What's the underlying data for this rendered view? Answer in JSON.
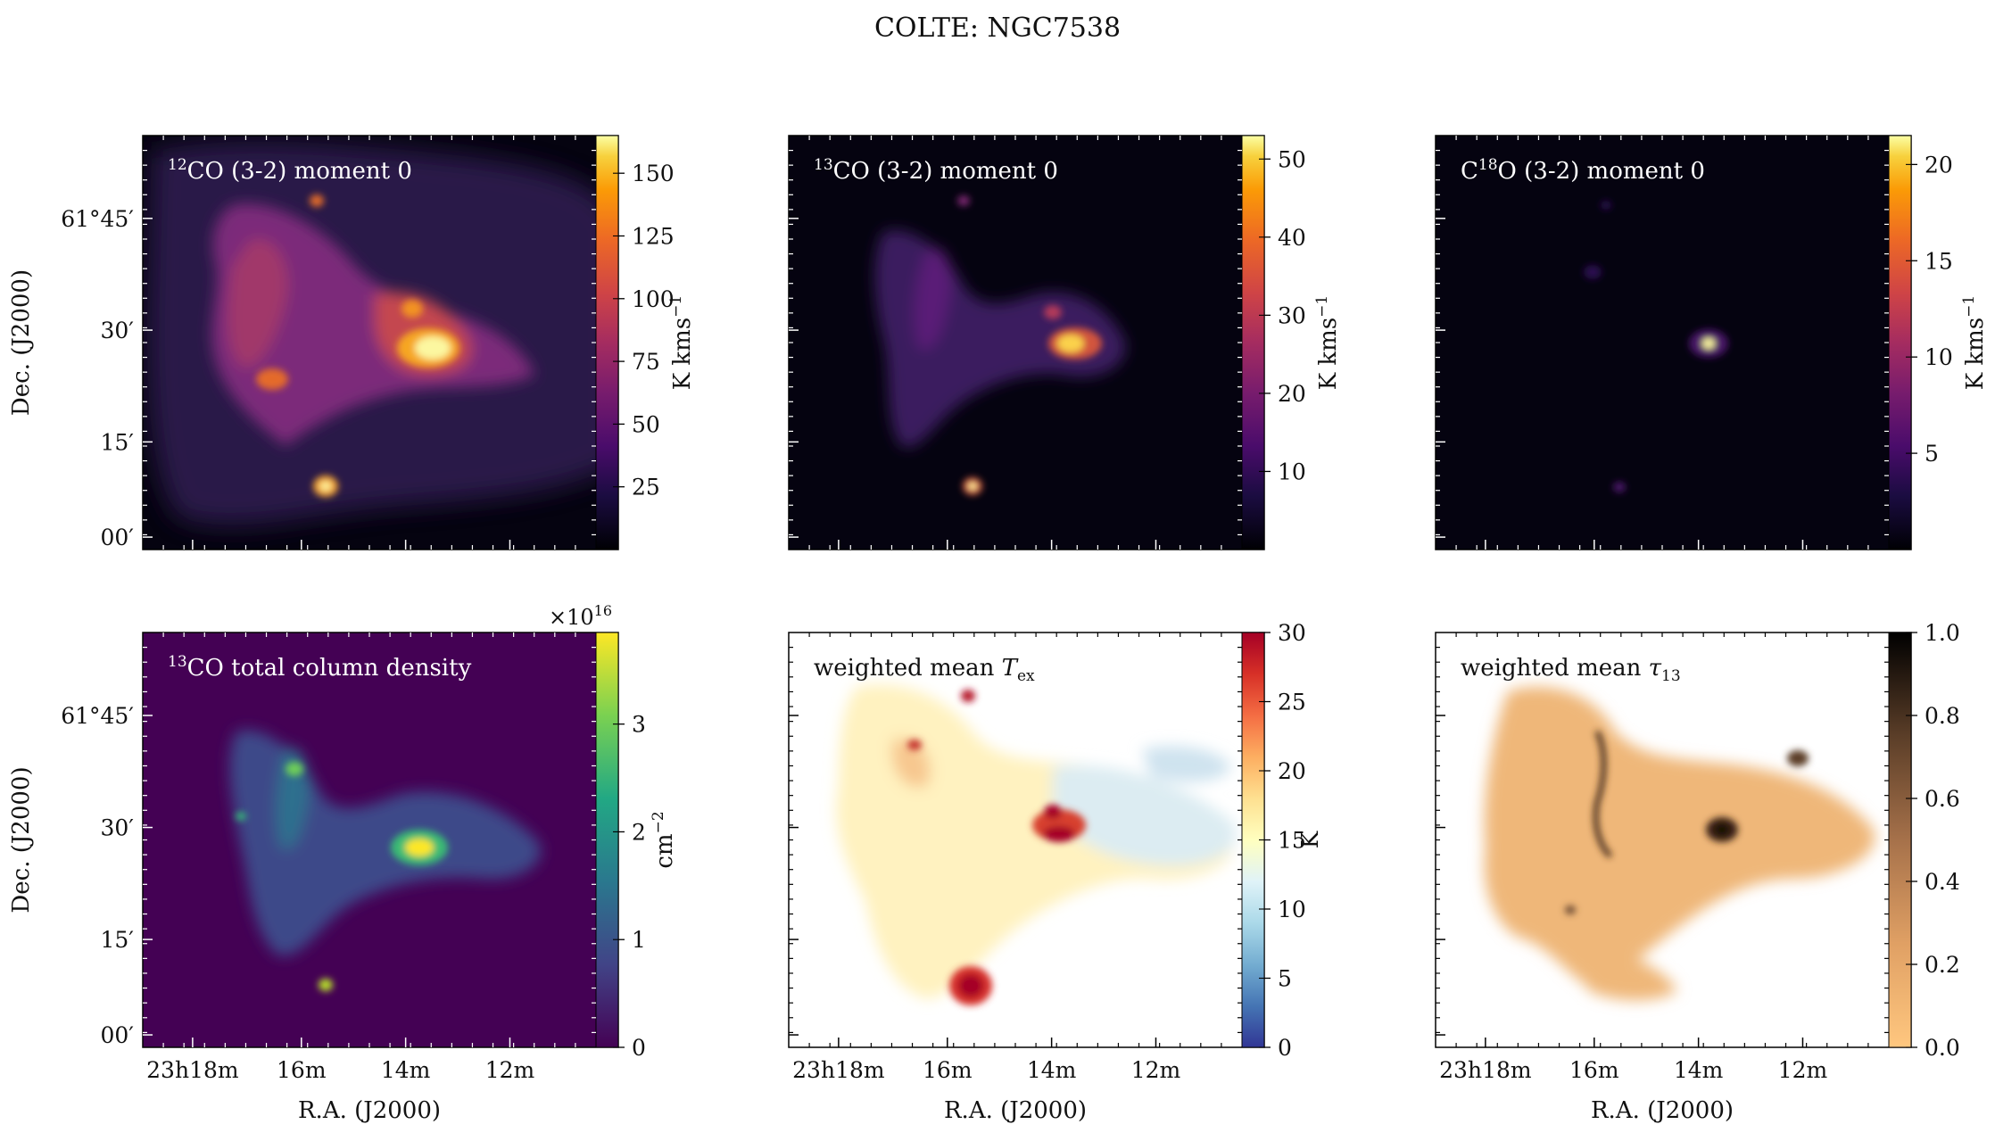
{
  "figure": {
    "suptitle": "COLTE: NGC7538"
  },
  "colors": {
    "inferno_bg": "#050310",
    "viridis_bg": "#440154",
    "accent_hot": "#fbf5a6",
    "rdylbu_red": "#a50026",
    "copper_light": "#f5c894"
  },
  "chart_data": [
    {
      "type": "heatmap",
      "id": "co12-mom0",
      "panel_label_sup": "12",
      "panel_label": "CO (3-2) moment 0",
      "colormap": "inferno",
      "colorbar_label": "K kms",
      "colorbar_label_sup": "−1",
      "colorbar_range": [
        0,
        165
      ],
      "colorbar_ticks": [
        "25",
        "50",
        "75",
        "100",
        "125",
        "150"
      ],
      "ylabel": "Dec. (J2000)",
      "yticks": [
        "61°45′",
        "30′",
        "15′",
        "00′"
      ],
      "xticks": [],
      "xlabel": "",
      "features": [
        {
          "ra": "23h13m40s",
          "dec": "61°28′",
          "value": 165
        },
        {
          "ra": "23h15m30s",
          "dec": "61°07′",
          "value": 150
        },
        {
          "ra": "23h16m20s",
          "dec": "61°23′",
          "value": 110
        }
      ]
    },
    {
      "type": "heatmap",
      "id": "co13-mom0",
      "panel_label_sup": "13",
      "panel_label": "CO (3-2) moment 0",
      "colormap": "inferno",
      "colorbar_label": "K kms",
      "colorbar_label_sup": "−1",
      "colorbar_range": [
        0,
        53
      ],
      "colorbar_ticks": [
        "10",
        "20",
        "30",
        "40",
        "50"
      ],
      "ylabel": "",
      "yticks": [],
      "xticks": [],
      "xlabel": "",
      "features": [
        {
          "ra": "23h13m50s",
          "dec": "61°28′",
          "value": 53
        },
        {
          "ra": "23h15m30s",
          "dec": "61°07′",
          "value": 45
        }
      ]
    },
    {
      "type": "heatmap",
      "id": "c18o-mom0",
      "panel_label_pre": "C",
      "panel_label_sup": "18",
      "panel_label": "O (3-2) moment 0",
      "colormap": "inferno",
      "colorbar_label": "K kms",
      "colorbar_label_sup": "−1",
      "colorbar_range": [
        0,
        21.5
      ],
      "colorbar_ticks": [
        "5",
        "10",
        "15",
        "20"
      ],
      "ylabel": "",
      "yticks": [],
      "xticks": [],
      "xlabel": "",
      "features": [
        {
          "ra": "23h13m40s",
          "dec": "61°28′",
          "value": 21
        }
      ]
    },
    {
      "type": "heatmap",
      "id": "co13-coldens",
      "panel_label_sup": "13",
      "panel_label": "CO total column density",
      "colormap": "viridis",
      "colorbar_label": "cm",
      "colorbar_label_sup": "−2",
      "colorbar_multiplier": "×10",
      "colorbar_multiplier_sup": "16",
      "colorbar_range": [
        0,
        3.85
      ],
      "colorbar_ticks": [
        "0",
        "1",
        "2",
        "3"
      ],
      "ylabel": "Dec. (J2000)",
      "yticks": [
        "61°45′",
        "30′",
        "15′",
        "00′"
      ],
      "xticks": [
        "23h18m",
        "16m",
        "14m",
        "12m"
      ],
      "xlabel": "R.A. (J2000)",
      "features": [
        {
          "ra": "23h13m50s",
          "dec": "61°27′",
          "value": 3.8
        }
      ]
    },
    {
      "type": "heatmap",
      "id": "tex",
      "panel_label": "weighted mean ",
      "panel_label_math": "T",
      "panel_label_sub": "ex",
      "colormap": "RdYlBu_r",
      "colorbar_label": "K",
      "colorbar_range": [
        0,
        30
      ],
      "colorbar_ticks": [
        "0",
        "5",
        "10",
        "15",
        "20",
        "25",
        "30"
      ],
      "ylabel": "",
      "yticks": [],
      "xticks": [
        "23h18m",
        "16m",
        "14m",
        "12m"
      ],
      "xlabel": "R.A. (J2000)",
      "features": [
        {
          "ra": "23h15m30s",
          "dec": "61°07′",
          "value": 30
        },
        {
          "ra": "23h14m00s",
          "dec": "61°29′",
          "value": 30
        }
      ]
    },
    {
      "type": "heatmap",
      "id": "tau13",
      "panel_label": "weighted mean ",
      "panel_label_math": "τ",
      "panel_label_sub": "13",
      "colormap": "copper_r",
      "colorbar_label": "",
      "colorbar_range": [
        0,
        1
      ],
      "colorbar_ticks": [
        "0.0",
        "0.2",
        "0.4",
        "0.6",
        "0.8",
        "1.0"
      ],
      "ylabel": "",
      "yticks": [],
      "xticks": [
        "23h18m",
        "16m",
        "14m",
        "12m"
      ],
      "xlabel": "R.A. (J2000)",
      "features": [
        {
          "ra": "23h14m00s",
          "dec": "61°27′",
          "value": 0.95
        }
      ]
    }
  ]
}
